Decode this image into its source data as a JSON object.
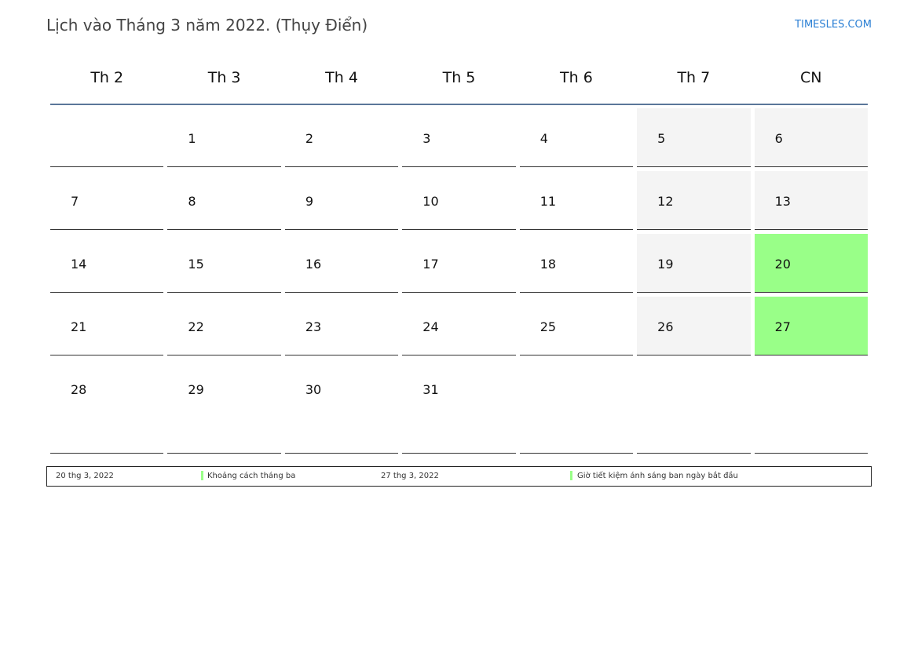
{
  "header": {
    "title": "Lịch vào Tháng 3 năm 2022. (Thụy Điển)",
    "brand": "TIMESLES.COM"
  },
  "weekdays": [
    "Th 2",
    "Th 3",
    "Th 4",
    "Th 5",
    "Th 6",
    "Th 7",
    "CN"
  ],
  "days": [
    "",
    "1",
    "2",
    "3",
    "4",
    "5",
    "6",
    "7",
    "8",
    "9",
    "10",
    "11",
    "12",
    "13",
    "14",
    "15",
    "16",
    "17",
    "18",
    "19",
    "20",
    "21",
    "22",
    "23",
    "24",
    "25",
    "26",
    "27",
    "28",
    "29",
    "30",
    "31",
    "",
    "",
    ""
  ],
  "highlighted_days": [
    "20",
    "27"
  ],
  "colors": {
    "highlight": "#99ff88",
    "weekend": "#f4f4f4",
    "header_line": "#5a7699",
    "brand": "#2a7fd4"
  },
  "legend": [
    {
      "date": "20 thg 3, 2022",
      "label": "Khoảng cách tháng ba"
    },
    {
      "date": "27 thg 3, 2022",
      "label": "Giờ tiết kiệm ánh sáng ban ngày bắt đầu"
    }
  ]
}
